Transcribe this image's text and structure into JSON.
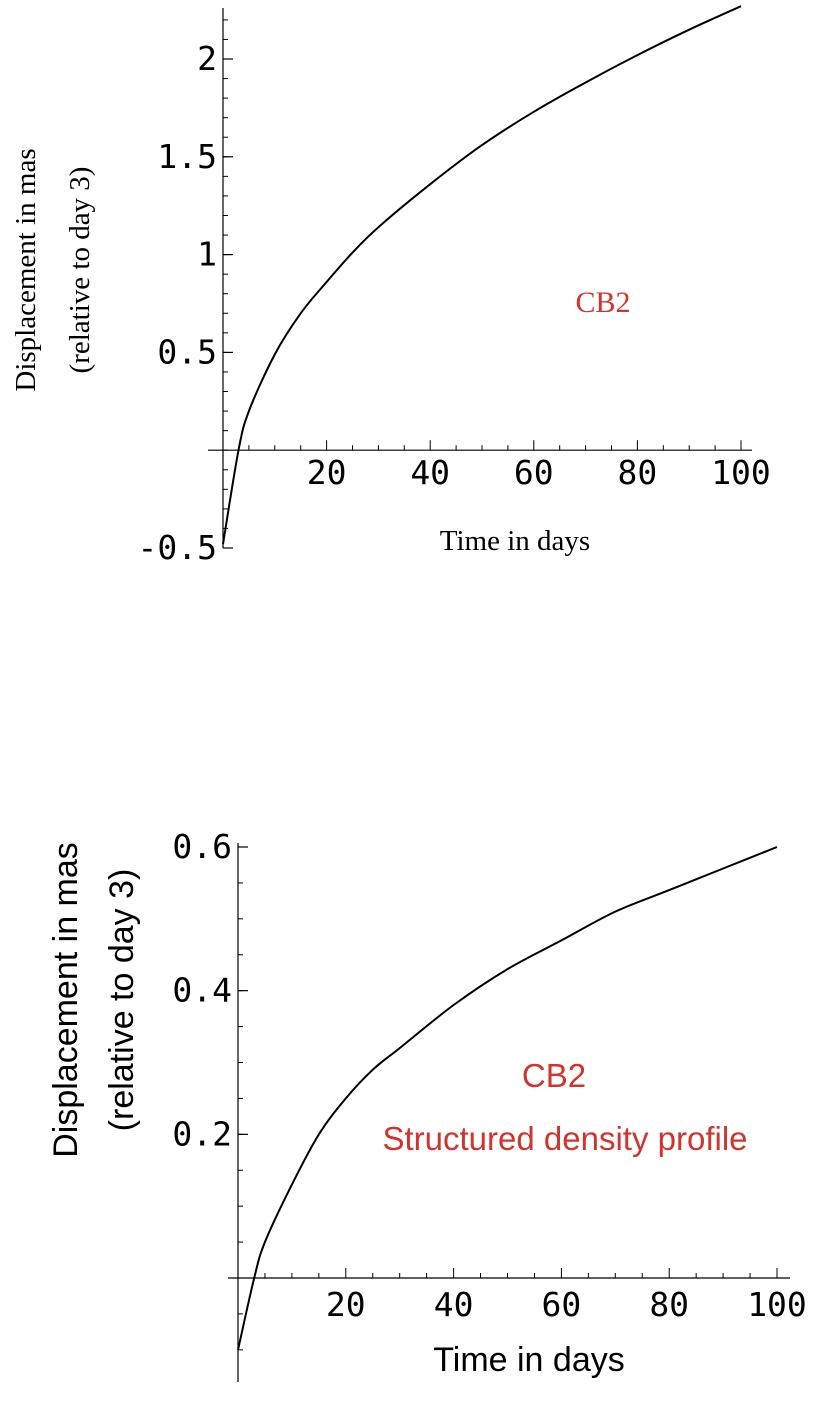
{
  "colors": {
    "annotation": "#d0342c",
    "curve": "#000000",
    "axis": "#000000"
  },
  "chart_data": [
    {
      "type": "line",
      "xlabel": "Time in days",
      "ylabel": "Displacement in mas",
      "ylabel2": "(relative to day 3)",
      "xlim": [
        0,
        100
      ],
      "ylim": [
        -0.5,
        2.2
      ],
      "xticks": [
        "20",
        "40",
        "60",
        "80",
        "100"
      ],
      "yticks": [
        "-0.5",
        "0.5",
        "1",
        "1.5",
        "2"
      ],
      "annotations": [
        "CB2"
      ],
      "grid": false,
      "series": [
        {
          "x": [
            0,
            3,
            5,
            10,
            15,
            20,
            25,
            30,
            40,
            50,
            60,
            70,
            80,
            90,
            100
          ],
          "values": [
            -0.48,
            0.0,
            0.2,
            0.49,
            0.7,
            0.86,
            1.01,
            1.14,
            1.36,
            1.56,
            1.73,
            1.88,
            2.02,
            2.15,
            2.27
          ]
        }
      ]
    },
    {
      "type": "line",
      "xlabel": "Time in days",
      "ylabel": "Displacement in mas",
      "ylabel2": "(relative to day 3)",
      "xlim": [
        0,
        100
      ],
      "ylim": [
        -0.1,
        0.6
      ],
      "xticks": [
        "20",
        "40",
        "60",
        "80",
        "100"
      ],
      "yticks": [
        "0.2",
        "0.4",
        "0.6"
      ],
      "annotations": [
        "CB2",
        "Structured density profile"
      ],
      "grid": false,
      "series": [
        {
          "x": [
            0,
            3,
            5,
            10,
            15,
            20,
            25,
            30,
            40,
            50,
            60,
            70,
            80,
            90,
            100
          ],
          "values": [
            -0.1,
            0.0,
            0.05,
            0.13,
            0.2,
            0.25,
            0.29,
            0.32,
            0.38,
            0.43,
            0.47,
            0.51,
            0.54,
            0.57,
            0.6
          ]
        }
      ]
    }
  ]
}
